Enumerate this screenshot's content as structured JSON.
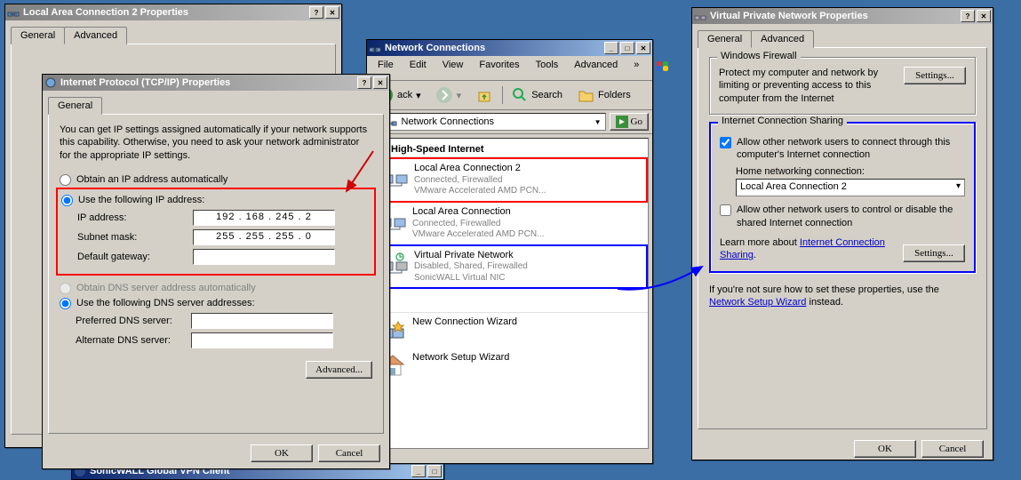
{
  "desktop_bg": "#3a6ea5",
  "highlight_colors": {
    "red": "#ff0000",
    "blue": "#0000ff"
  },
  "lac2_props": {
    "title": "Local Area Connection 2 Properties",
    "tabs": [
      "General",
      "Advanced"
    ]
  },
  "tcpip": {
    "title": "Internet Protocol (TCP/IP) Properties",
    "tabs": [
      "General"
    ],
    "description": "You can get IP settings assigned automatically if your network supports this capability. Otherwise, you need to ask your network administrator for the appropriate IP settings.",
    "radio_auto": "Obtain an IP address automatically",
    "radio_manual": "Use the following IP address:",
    "ip_label": "IP address:",
    "ip_value": "192 . 168 . 245 .   2",
    "subnet_label": "Subnet mask:",
    "subnet_value": "255 . 255 . 255 .   0",
    "gateway_label": "Default gateway:",
    "gateway_value": "",
    "radio_dns_auto": "Obtain DNS server address automatically",
    "radio_dns_manual": "Use the following DNS server addresses:",
    "pref_dns_label": "Preferred DNS server:",
    "alt_dns_label": "Alternate DNS server:",
    "advanced_btn": "Advanced...",
    "ok": "OK",
    "cancel": "Cancel"
  },
  "netconn": {
    "title": "Network Connections",
    "menus": [
      "File",
      "Edit",
      "View",
      "Favorites",
      "Tools",
      "Advanced"
    ],
    "tool_back": "ack",
    "tool_search": "Search",
    "tool_folders": "Folders",
    "addr_label": "s",
    "addr_value": "Network Connections",
    "go": "Go",
    "group1": "or High-Speed Internet",
    "items": [
      {
        "name": "Local Area Connection 2",
        "status": "Connected, Firewalled",
        "dev": "VMware Accelerated AMD PCN...",
        "hl": "red"
      },
      {
        "name": "Local Area Connection",
        "status": "Connected, Firewalled",
        "dev": "VMware Accelerated AMD PCN...",
        "hl": ""
      },
      {
        "name": "Virtual Private Network",
        "status": "Disabled, Shared, Firewalled",
        "dev": "SonicWALL Virtual NIC",
        "hl": "blue"
      }
    ],
    "group2": "d",
    "wiz1": "New Connection Wizard",
    "wiz2": "Network Setup Wizard"
  },
  "vpn": {
    "title": "Virtual Private Network Properties",
    "tabs": [
      "General",
      "Advanced"
    ],
    "fw_legend": "Windows Firewall",
    "fw_text": "Protect my computer and network by limiting or preventing access to this computer from the Internet",
    "settings": "Settings...",
    "ics_legend": "Internet Connection Sharing",
    "ics_allow": "Allow other network users to connect through this computer's Internet connection",
    "home_label": "Home networking connection:",
    "home_value": "Local Area Connection 2",
    "ics_control": "Allow other network users to control or disable the shared Internet connection",
    "learn_prefix": "Learn more about ",
    "learn_link": "Internet Connection Sharing",
    "hint_prefix": "If you're not sure how to set these properties, use the ",
    "hint_link": "Network Setup Wizard",
    "hint_suffix": " instead.",
    "ok": "OK",
    "cancel": "Cancel"
  },
  "taskbar_item": "SonicWALL Global VPN Client"
}
